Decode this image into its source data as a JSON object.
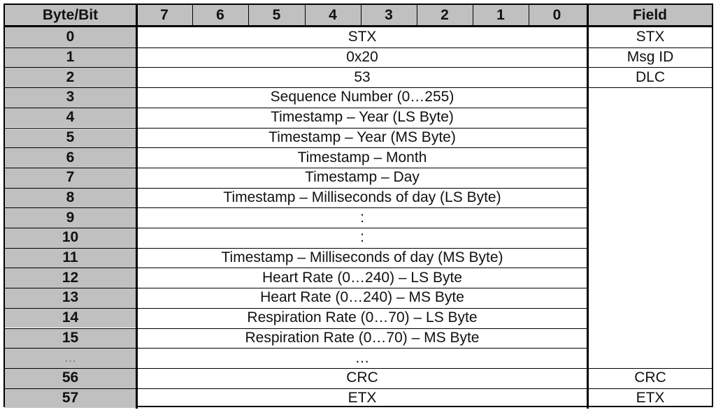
{
  "header": {
    "corner": "Byte/Bit",
    "bits": [
      "7",
      "6",
      "5",
      "4",
      "3",
      "2",
      "1",
      "0"
    ],
    "field": "Field"
  },
  "rows": [
    {
      "byte": "0",
      "content": "STX",
      "field": "STX"
    },
    {
      "byte": "1",
      "content": "0x20",
      "field": "Msg ID"
    },
    {
      "byte": "2",
      "content": "53",
      "field": "DLC"
    },
    {
      "byte": "3",
      "content": "Sequence Number (0…255)",
      "field": ""
    },
    {
      "byte": "4",
      "content": "Timestamp – Year (LS Byte)",
      "field": ""
    },
    {
      "byte": "5",
      "content": "Timestamp – Year (MS Byte)",
      "field": ""
    },
    {
      "byte": "6",
      "content": "Timestamp – Month",
      "field": ""
    },
    {
      "byte": "7",
      "content": "Timestamp – Day",
      "field": ""
    },
    {
      "byte": "8",
      "content": "Timestamp – Milliseconds of day (LS Byte)",
      "field": ""
    },
    {
      "byte": "9",
      "content": ":",
      "field": ""
    },
    {
      "byte": "10",
      "content": ":",
      "field": ""
    },
    {
      "byte": "11",
      "content": "Timestamp – Milliseconds of day (MS Byte)",
      "field": ""
    },
    {
      "byte": "12",
      "content": "Heart Rate (0…240) – LS Byte",
      "field": ""
    },
    {
      "byte": "13",
      "content": "Heart Rate (0…240) – MS Byte",
      "field": ""
    },
    {
      "byte": "14",
      "content": "Respiration Rate (0…70) – LS Byte",
      "field": ""
    },
    {
      "byte": "15",
      "content": "Respiration Rate (0…70) – MS Byte",
      "field": ""
    },
    {
      "byte": "…",
      "content": "…",
      "field": ""
    },
    {
      "byte": "56",
      "content": "CRC",
      "field": "CRC"
    },
    {
      "byte": "57",
      "content": "ETX",
      "field": "ETX"
    }
  ]
}
